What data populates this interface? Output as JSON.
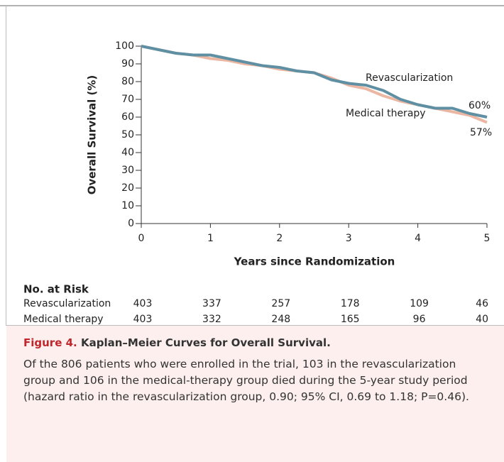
{
  "chart_data": {
    "type": "line",
    "ylabel": "Overall Survival (%)",
    "xlabel": "Years since Randomization",
    "x": [
      0,
      0.25,
      0.5,
      0.75,
      1,
      1.25,
      1.5,
      1.75,
      2,
      2.25,
      2.5,
      2.75,
      3,
      3.25,
      3.5,
      3.75,
      4,
      4.25,
      4.5,
      4.75,
      5
    ],
    "series": [
      {
        "name": "Revascularization",
        "color": "#5f8fa2",
        "values": [
          100,
          98,
          96,
          95,
          95,
          93,
          91,
          89,
          88,
          86,
          85,
          81,
          79,
          78,
          75,
          70,
          67,
          65,
          65,
          62,
          60
        ]
      },
      {
        "name": "Medical therapy",
        "color": "#ebb7a3",
        "values": [
          100,
          98,
          96,
          95,
          93,
          92,
          90,
          89,
          87,
          86,
          85,
          82,
          78,
          76,
          72,
          69,
          67,
          65,
          63,
          61,
          57
        ]
      }
    ],
    "annotations": [
      "60%",
      "57%"
    ],
    "xlim": [
      0,
      5
    ],
    "xticks": [
      0,
      1,
      2,
      3,
      4,
      5
    ],
    "ylim": [
      0,
      100
    ],
    "yticks": [
      0,
      10,
      20,
      30,
      40,
      50,
      60,
      70,
      80,
      90,
      100
    ],
    "grid": false
  },
  "at_risk": {
    "title": "No. at Risk",
    "rows": [
      {
        "label": "Revascularization",
        "values": [
          403,
          337,
          257,
          178,
          109,
          46
        ]
      },
      {
        "label": "Medical therapy",
        "values": [
          403,
          332,
          248,
          165,
          96,
          40
        ]
      }
    ]
  },
  "caption": {
    "label": "Figure 4.",
    "title": "Kaplan–Meier Curves for Overall Survival.",
    "text": "Of the 806 patients who were enrolled in the trial, 103 in the revascularization group and 106 in the medical-therapy group died during the 5-year study period (hazard ratio in the revascularization group, 0.90; 95% CI, 0.69 to 1.18; P=0.46)."
  }
}
